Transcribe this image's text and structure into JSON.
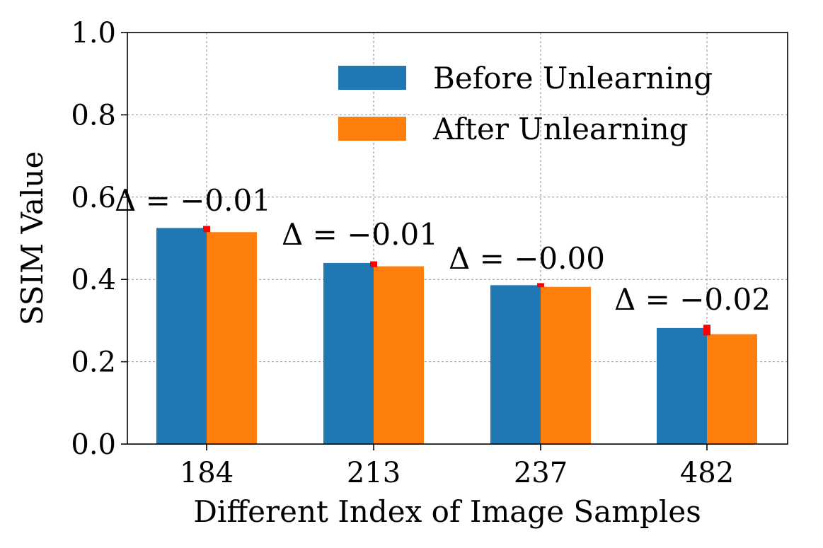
{
  "chart_data": {
    "type": "bar",
    "title": "",
    "xlabel": "Different Index of Image Samples",
    "ylabel": "SSIM Value",
    "categories": [
      "184",
      "213",
      "237",
      "482"
    ],
    "series": [
      {
        "name": "Before Unlearning",
        "color": "#1f77b4",
        "values": [
          0.525,
          0.44,
          0.386,
          0.282
        ]
      },
      {
        "name": "After Unlearning",
        "color": "#ff7f0e",
        "values": [
          0.515,
          0.432,
          0.382,
          0.267
        ]
      }
    ],
    "error_markers": {
      "color": "#ff0000",
      "ranges": [
        [
          0.515,
          0.53
        ],
        [
          0.43,
          0.444
        ],
        [
          0.381,
          0.391
        ],
        [
          0.264,
          0.29
        ]
      ]
    },
    "annotations": [
      "Δ = −0.01",
      "Δ = −0.01",
      "Δ = −0.00",
      "Δ = −0.02"
    ],
    "ylim": [
      0,
      1.0
    ],
    "yticks": [
      "0.0",
      "0.2",
      "0.4",
      "0.6",
      "0.8",
      "1.0"
    ],
    "grid": true,
    "legend_position": "top-right"
  }
}
